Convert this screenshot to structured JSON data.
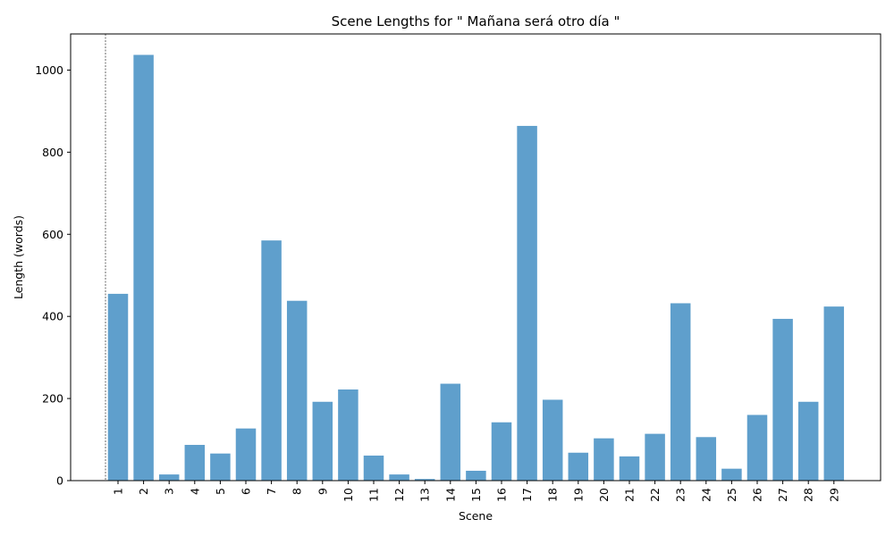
{
  "chart_data": {
    "type": "bar",
    "title": "Scene Lengths for \" Mañana será otro día \"",
    "xlabel": "Scene",
    "ylabel": "Length (words)",
    "categories": [
      "1",
      "2",
      "3",
      "4",
      "5",
      "6",
      "7",
      "8",
      "9",
      "10",
      "11",
      "12",
      "13",
      "14",
      "15",
      "16",
      "17",
      "18",
      "19",
      "20",
      "21",
      "22",
      "23",
      "24",
      "25",
      "26",
      "27",
      "28",
      "29"
    ],
    "values": [
      455,
      1037,
      15,
      87,
      66,
      127,
      585,
      438,
      192,
      222,
      61,
      15,
      4,
      236,
      24,
      142,
      864,
      197,
      68,
      103,
      59,
      114,
      432,
      106,
      29,
      160,
      394,
      192,
      424
    ],
    "ylim": [
      0,
      1088
    ],
    "yticks": [
      0,
      200,
      400,
      600,
      800,
      1000
    ],
    "bar_color": "#5f9fcc",
    "grid": false,
    "vertical_reference_line": "dashed line at left of first bar"
  }
}
